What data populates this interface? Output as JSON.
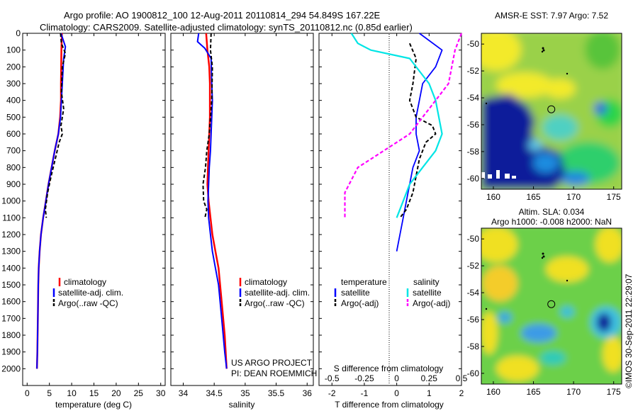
{
  "header": {
    "line1": "Argo profile: AO 1900812_100 12-Aug-2011 20110814_294 54.849S 167.22E",
    "line2": "Climatology: CARS2009. Satellite-adjusted climatology: synTS_20110812.nc (0.85d earlier)"
  },
  "credits": {
    "project": "US ARGO PROJECT",
    "pi": "PI: DEAN ROEMMICH",
    "stamp": "©IMOS 30-Sep-2011 22:29:07"
  },
  "colors": {
    "clim": "#ff0000",
    "sat": "#0000ff",
    "argo": "#000000",
    "s_sat": "#00e5e5",
    "s_argo": "#ff00ff"
  },
  "chart_data": [
    {
      "type": "line",
      "xlabel": "temperature (deg C)",
      "xlim": [
        -1,
        31
      ],
      "ylim": [
        0,
        2100
      ],
      "xticks": [
        0,
        5,
        10,
        15,
        20,
        25,
        30
      ],
      "yticks": [
        0,
        100,
        200,
        300,
        400,
        500,
        600,
        700,
        800,
        900,
        1000,
        1100,
        1200,
        1300,
        1400,
        1500,
        1600,
        1700,
        1800,
        1900,
        2000
      ],
      "legend": [
        "climatology",
        "satellite-adj. clim.",
        "Argo(..raw -QC)"
      ],
      "series": [
        {
          "name": "climatology",
          "x": [
            7.8,
            7.7,
            7.6,
            7.6,
            7.4,
            7.0,
            6.2,
            5.5,
            4.8,
            4.2,
            3.6,
            3.1,
            2.8,
            2.6,
            2.5,
            2.4,
            2.3,
            2.2
          ],
          "y": [
            0,
            100,
            300,
            400,
            500,
            600,
            700,
            800,
            900,
            1000,
            1100,
            1200,
            1300,
            1400,
            1500,
            1700,
            1900,
            2000
          ]
        },
        {
          "name": "satellite-adj. clim.",
          "x": [
            7.6,
            8.6,
            8.2,
            7.9,
            7.7,
            7.5,
            7.0,
            6.2,
            5.5,
            4.8,
            4.2,
            3.6,
            3.1,
            2.8,
            2.6,
            2.5,
            2.4,
            2.3,
            2.2
          ],
          "y": [
            0,
            80,
            150,
            300,
            400,
            500,
            600,
            700,
            800,
            900,
            1000,
            1100,
            1200,
            1300,
            1400,
            1500,
            1700,
            1900,
            2000
          ]
        },
        {
          "name": "Argo(..raw -QC)",
          "x": [
            7.5,
            7.7,
            8.6,
            7.9,
            7.7,
            8.2,
            7.6,
            7.9,
            7.2,
            6.3,
            5.4,
            4.6,
            4.1,
            4.3
          ],
          "y": [
            0,
            60,
            120,
            200,
            350,
            450,
            550,
            600,
            650,
            750,
            850,
            950,
            1050,
            1100
          ]
        }
      ]
    },
    {
      "type": "line",
      "xlabel": "salinity",
      "xlim": [
        33.8,
        36.1
      ],
      "ylim": [
        0,
        2100
      ],
      "xticks": [
        34,
        34.5,
        35,
        35.5,
        36
      ],
      "yticks": [
        0,
        100,
        200,
        300,
        400,
        500,
        600,
        700,
        800,
        900,
        1000,
        1100,
        1200,
        1300,
        1400,
        1500,
        1600,
        1700,
        1800,
        1900,
        2000
      ],
      "legend": [
        "climatology",
        "satellite-adj. clim.",
        "Argo(..raw -QC)"
      ],
      "series": [
        {
          "name": "climatology",
          "x": [
            34.37,
            34.39,
            34.42,
            34.43,
            34.43,
            34.43,
            34.42,
            34.41,
            34.4,
            34.39,
            34.41,
            34.44,
            34.47,
            34.52,
            34.57,
            34.62,
            34.67,
            34.7
          ],
          "y": [
            0,
            100,
            200,
            300,
            400,
            500,
            600,
            700,
            800,
            900,
            1000,
            1100,
            1200,
            1300,
            1400,
            1600,
            1800,
            2000
          ]
        },
        {
          "name": "satellite-adj. clim.",
          "x": [
            34.25,
            34.23,
            34.35,
            34.45,
            34.46,
            34.47,
            34.46,
            34.45,
            34.44,
            34.42,
            34.41,
            34.4,
            34.41,
            34.44,
            34.47,
            34.52,
            34.57,
            34.62,
            34.67,
            34.7
          ],
          "y": [
            0,
            50,
            90,
            150,
            300,
            400,
            500,
            600,
            700,
            800,
            900,
            1000,
            1100,
            1200,
            1300,
            1400,
            1500,
            1700,
            1900,
            2000
          ]
        },
        {
          "name": "Argo(..raw -QC)",
          "x": [
            34.45,
            34.44,
            34.47,
            34.46,
            34.42,
            34.38,
            34.36,
            34.32,
            34.33,
            34.38,
            34.35
          ],
          "y": [
            0,
            100,
            200,
            400,
            600,
            700,
            800,
            900,
            1000,
            1050,
            1100
          ]
        }
      ]
    },
    {
      "type": "line",
      "xlabel": "T difference from climatology",
      "x2label": "S difference from climatology",
      "xlim": [
        -2.4,
        2.0
      ],
      "ylim": [
        0,
        2100
      ],
      "xticks": [
        -2,
        -1,
        0,
        1,
        2
      ],
      "x2ticks": [
        -0.5,
        -0.25,
        0,
        0.25,
        0.5
      ],
      "x2ticklabels": [
        "-0.5",
        "-0.25",
        "0",
        "0.25",
        "0.5"
      ],
      "yticks": [
        0,
        100,
        200,
        300,
        400,
        500,
        600,
        700,
        800,
        900,
        1000,
        1100,
        1200,
        1300,
        1400,
        1500,
        1600,
        1700,
        1800,
        1900,
        2000
      ],
      "legend_headers": [
        "temperature",
        "salinity"
      ],
      "legend": [
        "satellite",
        "Argo(-adj)",
        "satellite",
        "Argo(-adj)"
      ],
      "series": [
        {
          "name": "satellite",
          "group": "temperature",
          "x": [
            0.7,
            1.4,
            1.2,
            0.8,
            0.7,
            0.6,
            0.6,
            0.7,
            0.5,
            0.4,
            0.3,
            0.2,
            0.1,
            0.05,
            0.0
          ],
          "y": [
            0,
            100,
            200,
            300,
            400,
            500,
            600,
            700,
            800,
            900,
            1000,
            1100,
            1200,
            1250,
            1300
          ]
        },
        {
          "name": "Argo(-adj)",
          "group": "temperature",
          "x": [
            0.4,
            0.6,
            0.5,
            0.4,
            0.6,
            1.1,
            1.2,
            0.9,
            0.7,
            0.6,
            0.5,
            0.3,
            0.1
          ],
          "y": [
            60,
            150,
            300,
            400,
            500,
            550,
            600,
            650,
            750,
            850,
            950,
            1050,
            1100
          ]
        },
        {
          "name": "satellite",
          "group": "salinity",
          "x": [
            -0.35,
            -0.3,
            -0.2,
            0.1,
            0.25,
            0.3,
            0.35,
            0.3,
            0.2,
            0.1,
            0.05,
            0.0
          ],
          "y": [
            0,
            60,
            100,
            150,
            300,
            400,
            600,
            700,
            800,
            900,
            1000,
            1100
          ]
        },
        {
          "name": "Argo(-adj)",
          "group": "salinity",
          "x": [
            0.5,
            0.45,
            0.4,
            0.3,
            0.2,
            0.1,
            -0.1,
            -0.3,
            -0.4,
            -0.4
          ],
          "y": [
            0,
            100,
            300,
            400,
            500,
            600,
            700,
            800,
            950,
            1100
          ]
        }
      ]
    },
    {
      "type": "heatmap",
      "title": "AMSR-E SST: 7.97 Argo: 7.52",
      "xlim": [
        158.5,
        176
      ],
      "ylim": [
        -60.8,
        -49.2
      ],
      "xticks": [
        160,
        165,
        170,
        175
      ],
      "yticks": [
        -50,
        -52,
        -54,
        -56,
        -58,
        -60
      ],
      "marker": {
        "x": 167.22,
        "y": -54.85
      }
    },
    {
      "type": "heatmap",
      "title": "Altim. SLA: 0.034",
      "subtitle": "Argo h1000: -0.008 h2000: NaN",
      "xlim": [
        158.5,
        176
      ],
      "ylim": [
        -60.8,
        -49.2
      ],
      "xticks": [
        160,
        165,
        170,
        175
      ],
      "yticks": [
        -50,
        -52,
        -54,
        -56,
        -58,
        -60
      ],
      "marker": {
        "x": 167.22,
        "y": -54.85
      }
    }
  ]
}
